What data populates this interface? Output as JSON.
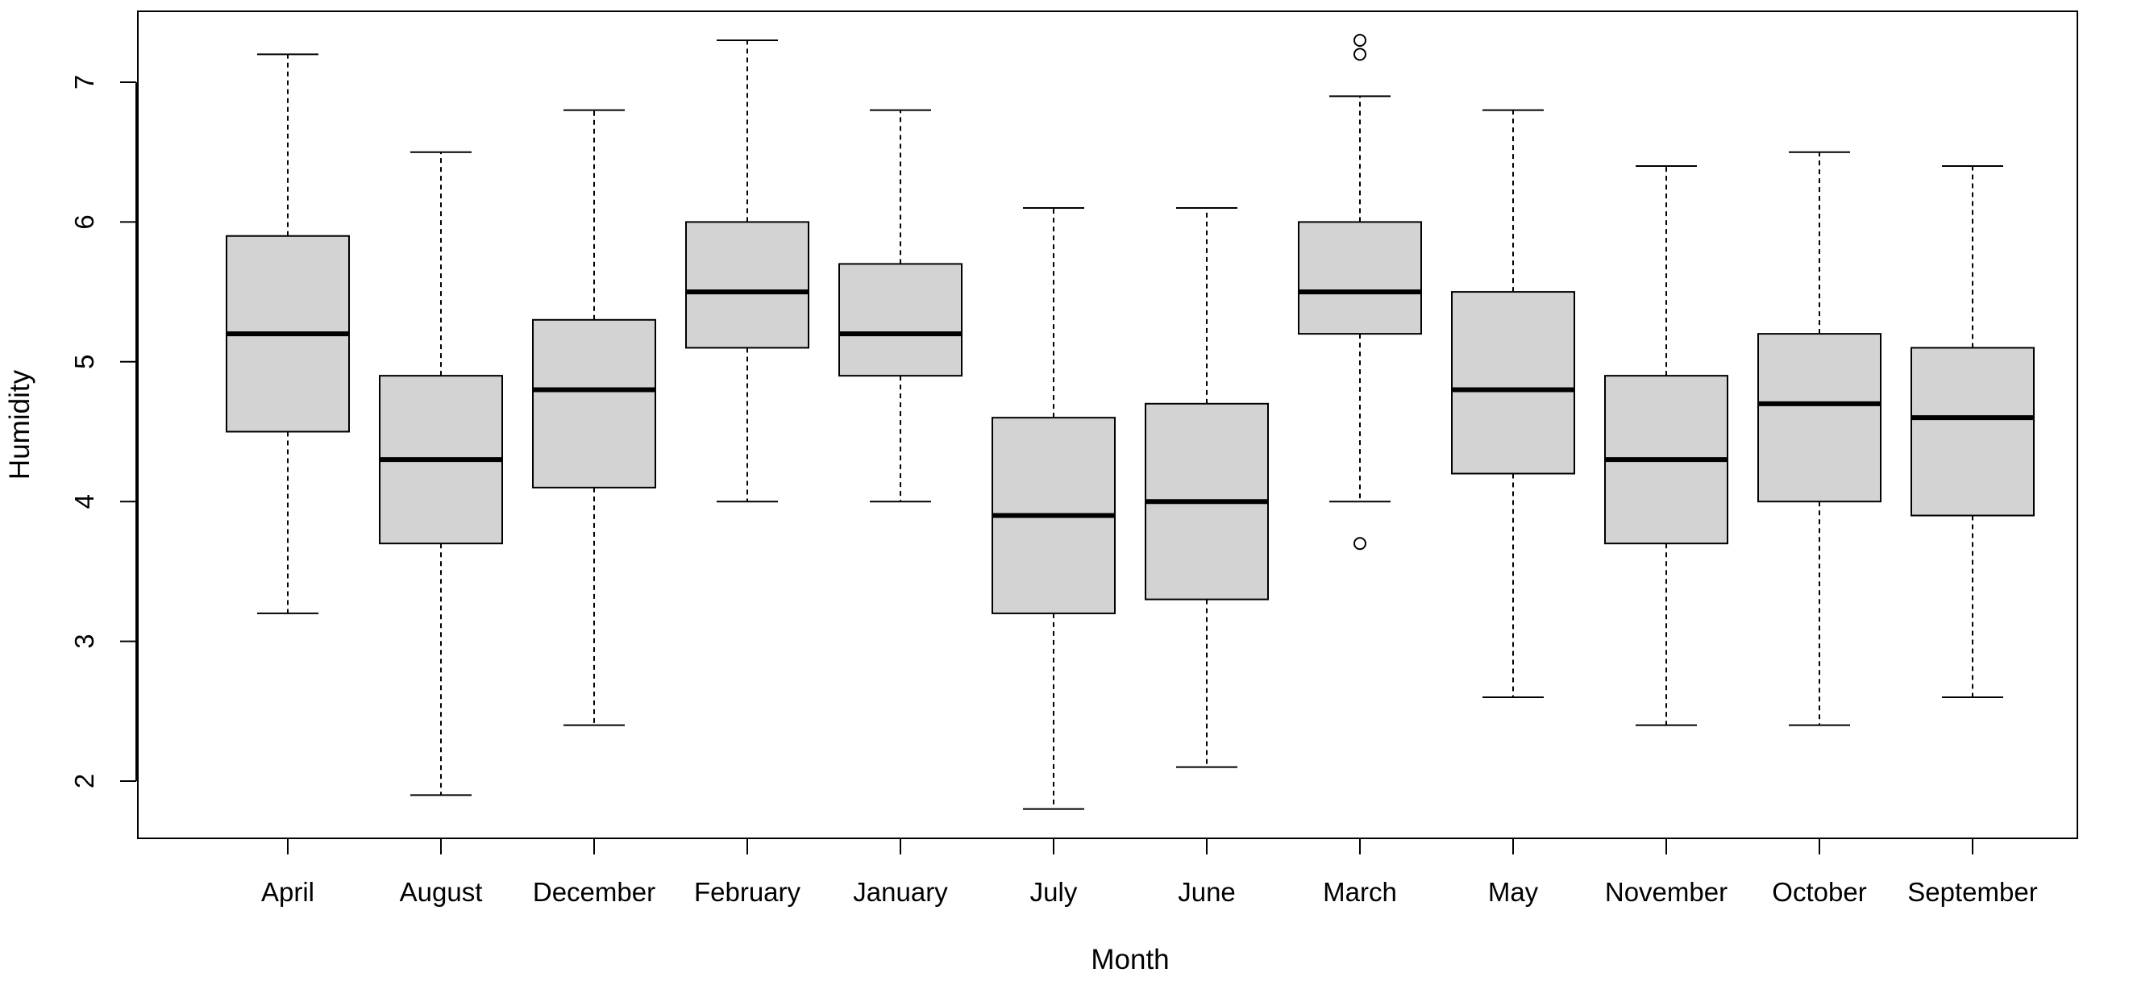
{
  "chart_data": {
    "type": "boxplot",
    "title": "",
    "xlabel": "Month",
    "ylabel": "Humidity",
    "ylim": [
      1.6,
      7.5
    ],
    "yticks": [
      "2",
      "3",
      "4",
      "5",
      "6",
      "7"
    ],
    "grid": false,
    "colors": {
      "box_fill": "#d3d3d3",
      "line": "#000000",
      "background": "#ffffff"
    },
    "categories": [
      "April",
      "August",
      "December",
      "February",
      "January",
      "July",
      "June",
      "March",
      "May",
      "November",
      "October",
      "September"
    ],
    "boxes": [
      {
        "min": 3.2,
        "q1": 4.5,
        "median": 5.2,
        "q3": 5.9,
        "max": 7.2,
        "outliers": []
      },
      {
        "min": 1.9,
        "q1": 3.7,
        "median": 4.3,
        "q3": 4.9,
        "max": 6.5,
        "outliers": []
      },
      {
        "min": 2.4,
        "q1": 4.1,
        "median": 4.8,
        "q3": 5.3,
        "max": 6.8,
        "outliers": []
      },
      {
        "min": 4.0,
        "q1": 5.1,
        "median": 5.5,
        "q3": 6.0,
        "max": 7.3,
        "outliers": []
      },
      {
        "min": 4.0,
        "q1": 4.9,
        "median": 5.2,
        "q3": 5.7,
        "max": 6.8,
        "outliers": []
      },
      {
        "min": 1.8,
        "q1": 3.2,
        "median": 3.9,
        "q3": 4.6,
        "max": 6.1,
        "outliers": []
      },
      {
        "min": 2.1,
        "q1": 3.3,
        "median": 4.0,
        "q3": 4.7,
        "max": 6.1,
        "outliers": []
      },
      {
        "min": 4.0,
        "q1": 5.2,
        "median": 5.5,
        "q3": 6.0,
        "max": 6.9,
        "outliers": [
          7.3,
          7.2,
          3.7
        ]
      },
      {
        "min": 2.6,
        "q1": 4.2,
        "median": 4.8,
        "q3": 5.5,
        "max": 6.8,
        "outliers": []
      },
      {
        "min": 2.4,
        "q1": 3.7,
        "median": 4.3,
        "q3": 4.9,
        "max": 6.4,
        "outliers": []
      },
      {
        "min": 2.4,
        "q1": 4.0,
        "median": 4.7,
        "q3": 5.2,
        "max": 6.5,
        "outliers": []
      },
      {
        "min": 2.6,
        "q1": 3.9,
        "median": 4.6,
        "q3": 5.1,
        "max": 6.4,
        "outliers": []
      }
    ]
  }
}
